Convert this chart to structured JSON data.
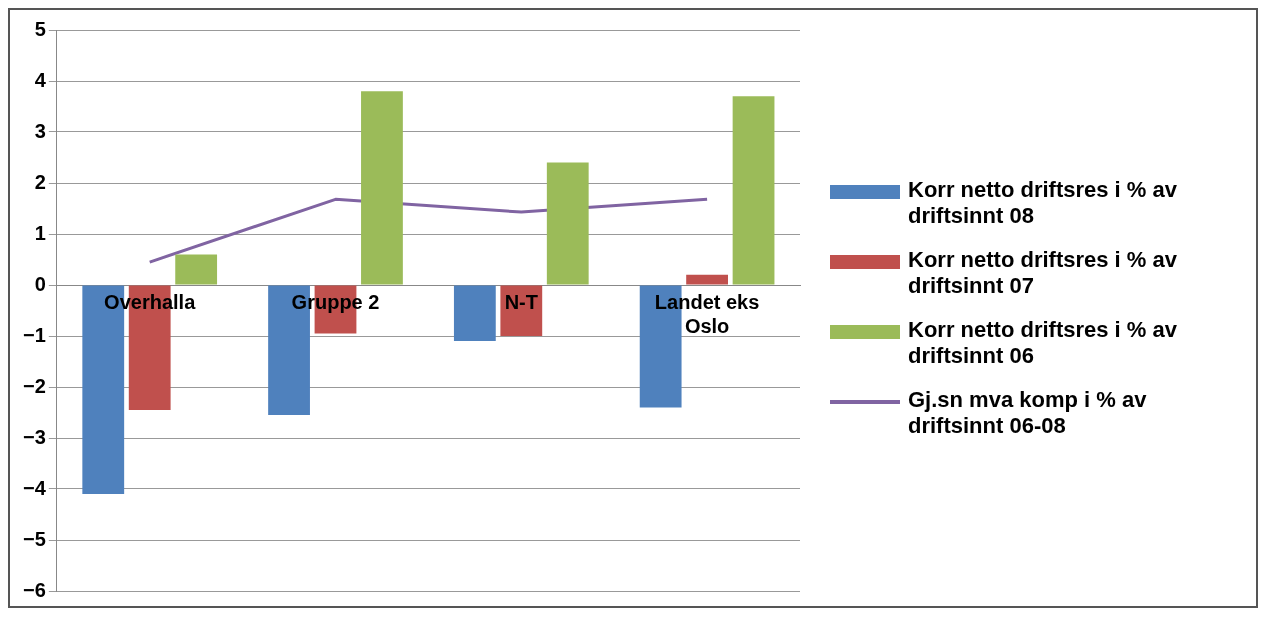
{
  "chart_data": {
    "type": "bar",
    "categories": [
      "Overhalla",
      "Gruppe 2",
      "N-T",
      "Landet eks Oslo"
    ],
    "series": [
      {
        "name": "Korr netto driftsres i % av driftsinnt 08",
        "color": "#4f81bd",
        "values": [
          -4.1,
          -2.55,
          -1.1,
          -2.4
        ]
      },
      {
        "name": "Korr netto driftsres i % av driftsinnt 07",
        "color": "#c0504d",
        "values": [
          -2.45,
          -0.95,
          -1.0,
          0.2
        ]
      },
      {
        "name": "Korr netto driftsres i % av driftsinnt 06",
        "color": "#9bbb59",
        "values": [
          0.6,
          3.8,
          2.4,
          3.7
        ]
      },
      {
        "name": "Gj.sn mva komp i % av driftsinnt 06-08",
        "color": "#8064a2",
        "type": "line",
        "values": [
          0.45,
          1.68,
          1.43,
          1.68
        ]
      }
    ],
    "ylim": [
      -6,
      5
    ],
    "yticks": [
      -6,
      -5,
      -4,
      -3,
      -2,
      -1,
      0,
      1,
      2,
      3,
      4,
      5
    ],
    "grid": "y",
    "legend": "right",
    "marker": "none"
  }
}
